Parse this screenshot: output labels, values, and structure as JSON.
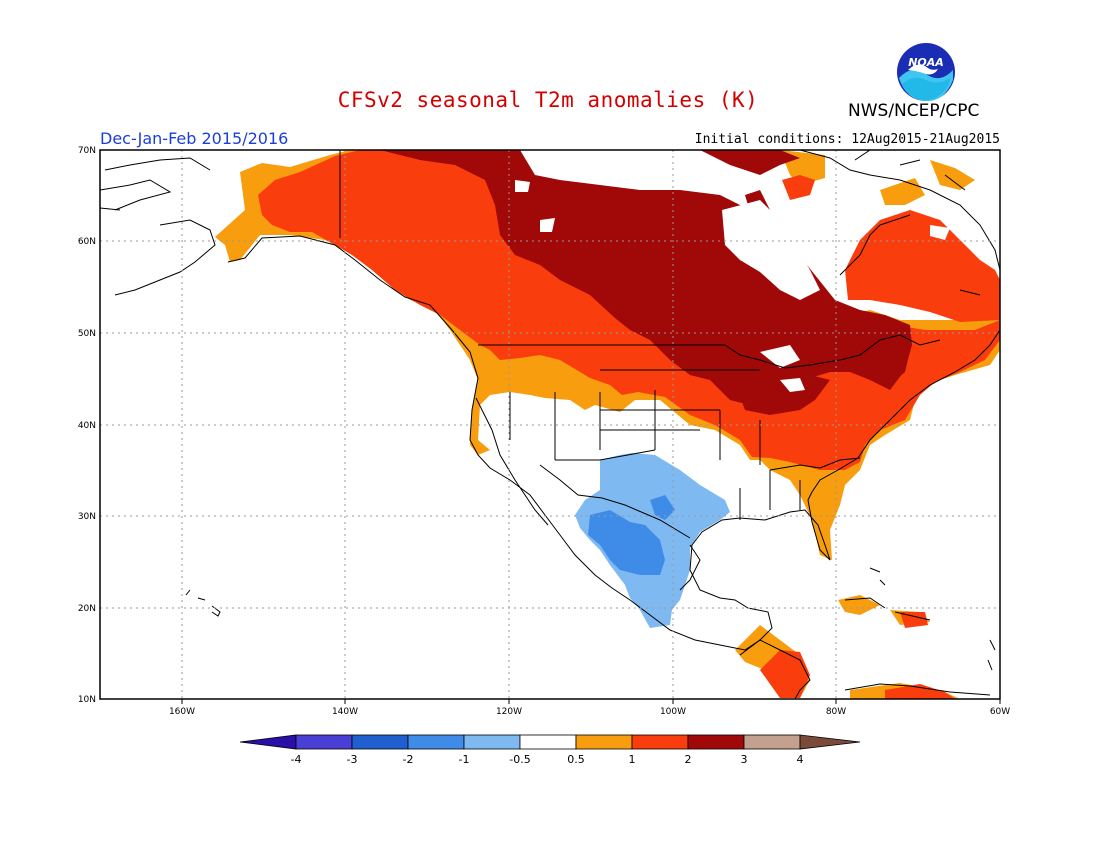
{
  "title": "CFSv2 seasonal T2m anomalies (K)",
  "agency": "NWS/NCEP/CPC",
  "logo_text": "NOAA",
  "season": "Dec-Jan-Feb 2015/2016",
  "initial_conditions": "Initial conditions: 12Aug2015-21Aug2015",
  "map": {
    "projection": "lat-lon",
    "lon_range": [
      -171,
      -60
    ],
    "lat_range": [
      10,
      70
    ],
    "lat_ticks": [
      "70N",
      "60N",
      "50N",
      "40N",
      "30N",
      "20N",
      "10N"
    ],
    "lon_ticks": [
      "160W",
      "140W",
      "120W",
      "100W",
      "80W",
      "60W"
    ],
    "grid": "dotted"
  },
  "colorbar": {
    "labels": [
      "-4",
      "-3",
      "-2",
      "-1",
      "-0.5",
      "0.5",
      "1",
      "2",
      "3",
      "4"
    ],
    "colors": {
      "lt_neg4": "#2a10a8",
      "neg4_neg3": "#4a3fd4",
      "neg3_neg2": "#1f5fd0",
      "neg2_neg1": "#3f8ce8",
      "neg1_neg05": "#7fb9f2",
      "neg05_05": "#ffffff",
      "p05_1": "#f89d0e",
      "p1_2": "#fa3d0c",
      "p2_3": "#a10808",
      "p3_4": "#c4a08f",
      "gt4": "#7a4a3a"
    }
  },
  "anomaly_regions": [
    {
      "category": "2-3",
      "description": "Canada, northern plains, Great Lakes"
    },
    {
      "category": "1-2",
      "description": "Alaska interior, western Canada, northeast US, southeast Canada"
    },
    {
      "category": "0.5-1",
      "description": "Alaska west coast, Pacific Northwest, northern Rockies, Southeast US"
    },
    {
      "category": "-1--0.5",
      "description": "Southwest US, Texas, northern Mexico"
    },
    {
      "category": "-2--1",
      "description": "Northwest Mexico"
    }
  ]
}
